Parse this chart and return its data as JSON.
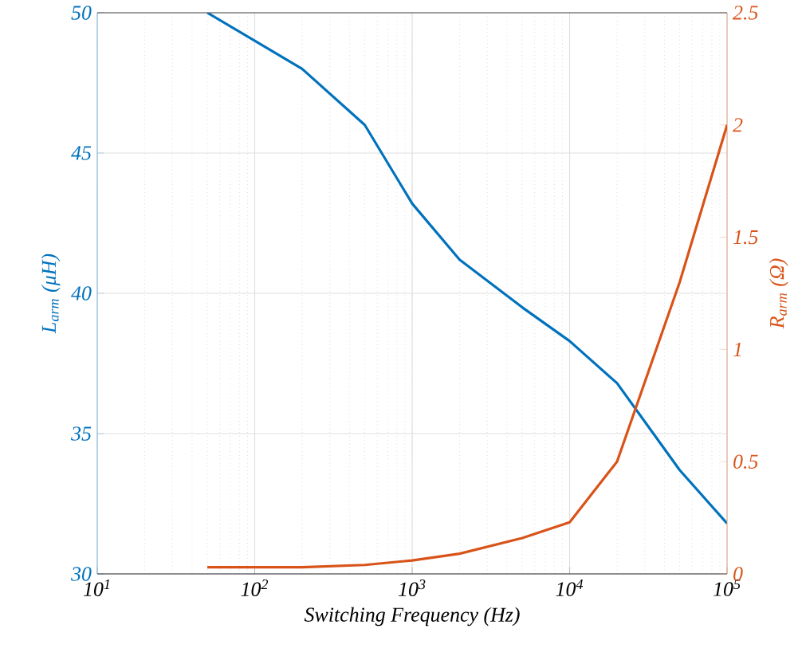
{
  "chart_data": {
    "type": "line",
    "xlabel": "Switching Frequency (Hz)",
    "ylabel": "L$_{arm}$ (μH)",
    "y2label": "R$_{arm}$ (Ω)",
    "x": [
      50,
      100,
      200,
      500,
      1000,
      2000,
      5000,
      10000,
      20000,
      50000,
      100000
    ],
    "series": [
      {
        "color": "#0072bd",
        "values": [
          50,
          49.0,
          48.0,
          46.0,
          43.2,
          41.2,
          39.5,
          38.3,
          36.8,
          33.7,
          31.8
        ]
      },
      {
        "color": "#d95319",
        "axis": "y2",
        "values": [
          0.03,
          0.03,
          0.03,
          0.04,
          0.06,
          0.09,
          0.16,
          0.23,
          0.5,
          1.3,
          2.0
        ]
      }
    ],
    "log": "x",
    "grid": true,
    "marker": "none",
    "line_style": "solid",
    "xlim": [
      10,
      100000
    ],
    "xticks": [
      {
        "value": 10,
        "label": "10$^{1}$"
      },
      {
        "value": 100,
        "label": "10$^{2}$"
      },
      {
        "value": 1000,
        "label": "10$^{3}$"
      },
      {
        "value": 10000,
        "label": "10$^{4}$"
      },
      {
        "value": 100000,
        "label": "10$^{5}$"
      }
    ],
    "ylim": [
      30,
      50
    ],
    "yticks": [
      30,
      35,
      40,
      45,
      50
    ],
    "y2lim": [
      0,
      2.5
    ],
    "y2ticks": [
      0,
      0.5,
      1,
      1.5,
      2,
      2.5
    ]
  }
}
